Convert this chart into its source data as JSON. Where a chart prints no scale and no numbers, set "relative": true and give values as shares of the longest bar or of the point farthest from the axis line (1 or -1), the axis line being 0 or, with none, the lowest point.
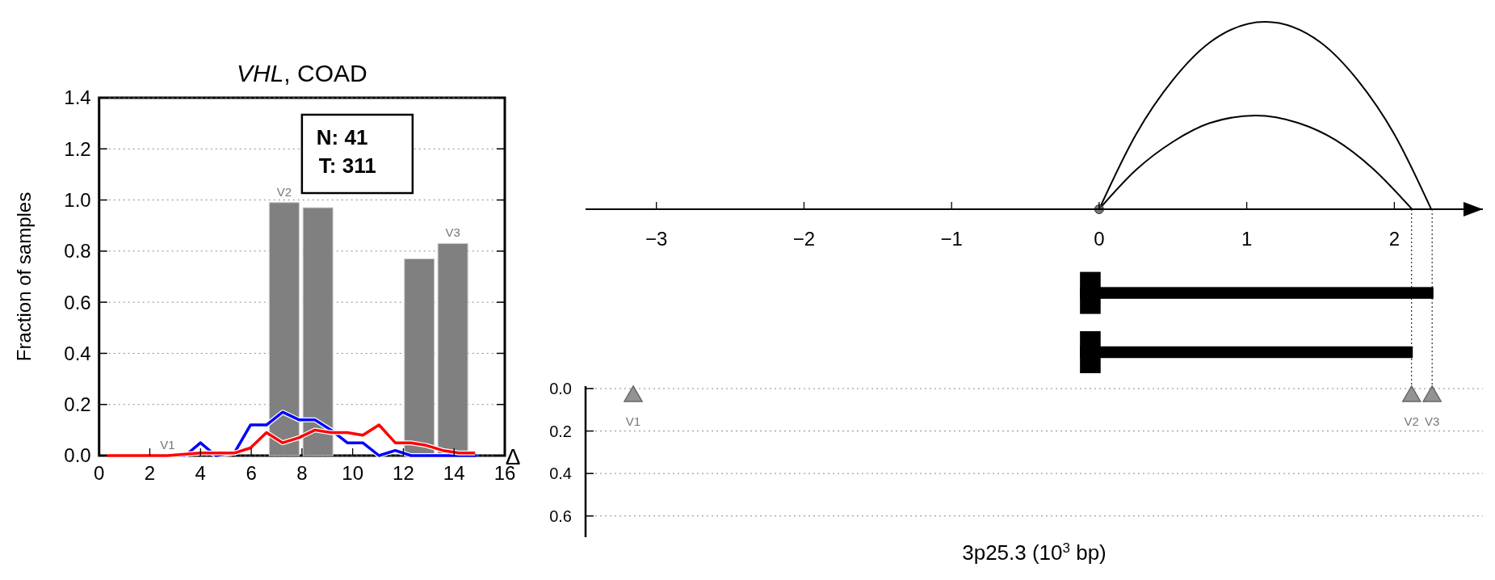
{
  "chart_data": [
    {
      "type": "bar",
      "title": "VHL, COAD",
      "ylabel": "Fraction of samples",
      "xlim": [
        0,
        16
      ],
      "xticks": [
        0,
        2,
        4,
        6,
        8,
        10,
        12,
        14,
        16
      ],
      "ylim": [
        0,
        1.4
      ],
      "yticks": [
        {
          "value": 0,
          "label": "0.0"
        },
        {
          "value": 0.2,
          "label": "0.2"
        },
        {
          "value": 0.4,
          "label": "0.4"
        },
        {
          "value": 0.6,
          "label": "0.6"
        },
        {
          "value": 0.8,
          "label": "0.8"
        },
        {
          "value": 1,
          "label": "1.0"
        },
        {
          "value": 1.2,
          "label": "1.2"
        },
        {
          "value": 1.4,
          "label": "1.4"
        }
      ],
      "grid": "y",
      "series": [
        {
          "color": "#808080",
          "x": [
            7.3,
            8.63,
            12.63,
            13.95
          ],
          "values": [
            0.99,
            0.97,
            0.77,
            0.83
          ]
        },
        {
          "type": "line",
          "color": "#0000ff",
          "x": [
            0.3,
            2.7,
            3.4,
            4.0,
            4.6,
            5.33,
            5.97,
            6.6,
            7.24,
            7.88,
            8.51,
            9.15,
            9.79,
            10.4,
            11.04,
            11.68,
            12.3,
            14.9
          ],
          "values": [
            0,
            0,
            0,
            0.05,
            0,
            0.01,
            0.12,
            0.12,
            0.17,
            0.14,
            0.14,
            0.1,
            0.05,
            0.05,
            0,
            0.02,
            0,
            0
          ]
        },
        {
          "type": "line",
          "color": "#ff0000",
          "x": [
            0.3,
            2.7,
            4.0,
            5.33,
            5.97,
            6.6,
            7.24,
            7.88,
            8.51,
            9.15,
            9.79,
            10.4,
            11.04,
            11.68,
            12.3,
            12.9,
            13.56,
            14.2,
            14.83
          ],
          "values": [
            0,
            0,
            0.01,
            0.01,
            0.03,
            0.09,
            0.05,
            0.07,
            0.1,
            0.09,
            0.09,
            0.08,
            0.12,
            0.05,
            0.05,
            0.04,
            0.02,
            0.01,
            0.01
          ]
        }
      ],
      "annotations": [
        "N: 41\nT: 311",
        {
          "text": "V1",
          "x": 2.7,
          "y": 0
        },
        {
          "text": "V2",
          "x": 7.3,
          "y": 0.99
        },
        {
          "text": "V3",
          "x": 13.95,
          "y": 0.83
        }
      ]
    },
    {
      "type": "line",
      "relative": true,
      "xlim": [
        -3.48,
        2.6
      ],
      "xticks": [
        {
          "value": -3,
          "label": "−3"
        },
        {
          "value": -2,
          "label": "−2"
        },
        {
          "value": -1,
          "label": "−1"
        },
        0,
        1,
        2
      ],
      "series": [
        {
          "color": "#000000",
          "x": [
            0,
            0.25,
            0.5,
            0.75,
            1.125,
            1.5,
            1.75,
            2.0,
            2.25
          ],
          "values": [
            0,
            0.4,
            0.69,
            0.89,
            1,
            0.89,
            0.69,
            0.4,
            0
          ]
        },
        {
          "color": "#000000",
          "x": [
            0,
            0.25,
            0.5,
            0.75,
            1.06,
            1.35,
            1.6,
            1.85,
            2.12
          ],
          "values": [
            0,
            0.21,
            0.36,
            0.46,
            0.5,
            0.46,
            0.37,
            0.22,
            0
          ]
        },
        {
          "type": "scatter",
          "marker": "circle",
          "color": "#555555",
          "x": [
            0
          ],
          "values": [
            0
          ]
        }
      ]
    },
    {
      "type": "bar",
      "orientation": "horizontal",
      "xlim": [
        -3.48,
        2.6
      ],
      "tick_labels": false,
      "categories": [
        null,
        null
      ],
      "series": [
        {
          "color": "#000000",
          "base": [
            -0.13,
            -0.13
          ],
          "values": [
            2.395,
            2.255
          ]
        },
        {
          "color": "#000000",
          "base": [
            -0.13,
            -0.13
          ],
          "values": [
            0.14,
            0.14
          ]
        }
      ],
      "ref_lines": [
        {
          "axis": "x",
          "value": 2.117,
          "line_style": "dotted"
        },
        {
          "axis": "x",
          "value": 2.256,
          "line_style": "dotted"
        }
      ]
    },
    {
      "type": "scatter",
      "xlabel": "3p25.3 (10$^{3}$ bp)",
      "ylabel": "Δ",
      "xlim": [
        -3.48,
        2.6
      ],
      "ylim": [
        0.7,
        0
      ],
      "yticks": [
        {
          "value": 0,
          "label": "0.0"
        },
        {
          "value": 0.2,
          "label": "0.2"
        },
        {
          "value": 0.4,
          "label": "0.4"
        },
        {
          "value": 0.6,
          "label": "0.6"
        }
      ],
      "tick_labels": "y",
      "grid": "y",
      "marker": "triangle",
      "series": [
        {
          "color": "#808080",
          "x": [
            -3.157,
            2.117,
            2.256
          ],
          "values": [
            0.03,
            0.03,
            0.03
          ]
        }
      ],
      "annotations": [
        {
          "text": "V1",
          "x": -3.157,
          "y": 0.03
        },
        {
          "text": "V2",
          "x": 2.117,
          "y": 0.03
        },
        {
          "text": "V3",
          "x": 2.256,
          "y": 0.03
        }
      ]
    }
  ]
}
